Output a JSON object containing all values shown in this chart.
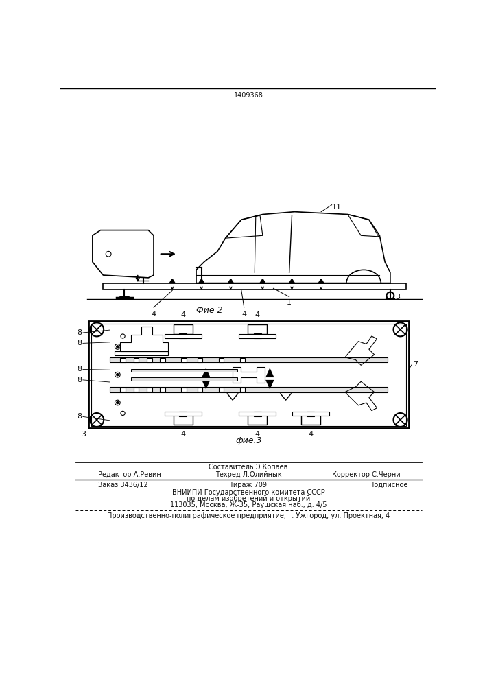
{
  "patent_number": "1409368",
  "bg_color": "#ffffff",
  "fig_width": 7.07,
  "fig_height": 10.0,
  "fig2_caption": "Фие 2",
  "fig3_caption": "фие.3",
  "footer_texts": {
    "editor": "Редактор А.Ревин",
    "composer": "Составитель Э.Копаев",
    "techred": "Техред Л.Олийнык",
    "corrector": "Корректор С.Черни",
    "order": "Заказ 3436/12",
    "tirazh": "Тираж 709",
    "podpisnoe": "Подписное",
    "vniiipi_line1": "ВНИИПИ Государственного комитета СССР",
    "vniiipi_line2": "по делам изобретений и открытий",
    "vniiipi_line3": "113035, Москва, Ж-35, Раушская наб., д. 4/5",
    "factory": "Производственно-полиграфическое предприятие, г. Ужгород, ул. Проектная, 4"
  }
}
